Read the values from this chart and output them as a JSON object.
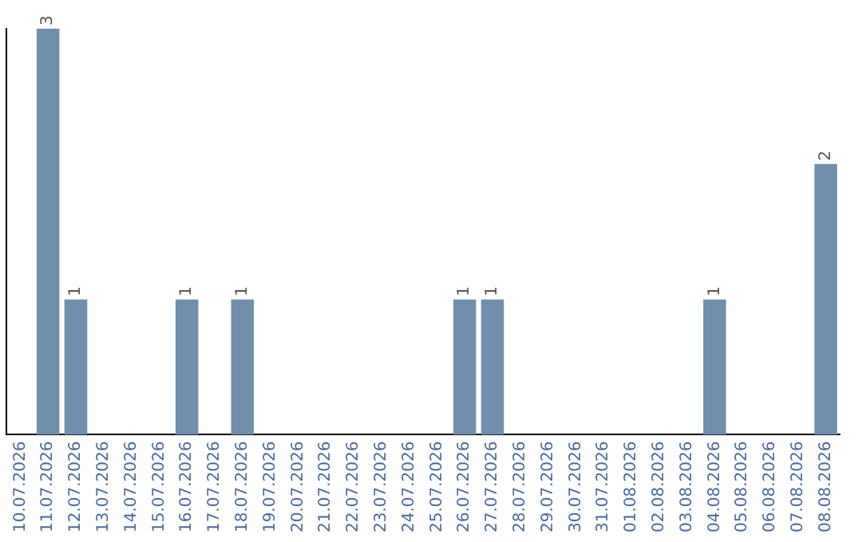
{
  "chart_data": {
    "type": "bar",
    "categories": [
      "10.07.2026",
      "11.07.2026",
      "12.07.2026",
      "13.07.2026",
      "14.07.2026",
      "15.07.2026",
      "16.07.2026",
      "17.07.2026",
      "18.07.2026",
      "19.07.2026",
      "20.07.2026",
      "21.07.2026",
      "22.07.2026",
      "23.07.2026",
      "24.07.2026",
      "25.07.2026",
      "26.07.2026",
      "27.07.2026",
      "28.07.2026",
      "29.07.2026",
      "30.07.2026",
      "31.07.2026",
      "01.08.2026",
      "02.08.2026",
      "03.08.2026",
      "04.08.2026",
      "05.08.2026",
      "06.08.2026",
      "07.08.2026",
      "08.08.2026"
    ],
    "values": [
      0,
      3,
      1,
      0,
      0,
      0,
      1,
      0,
      1,
      0,
      0,
      0,
      0,
      0,
      0,
      0,
      1,
      1,
      0,
      0,
      0,
      0,
      0,
      0,
      0,
      1,
      0,
      0,
      0,
      2
    ],
    "value_labels": [
      null,
      "3",
      "1",
      null,
      null,
      null,
      "1",
      null,
      "1",
      null,
      null,
      null,
      null,
      null,
      null,
      null,
      "1",
      "1",
      null,
      null,
      null,
      null,
      null,
      null,
      null,
      "1",
      null,
      null,
      null,
      "2"
    ],
    "color": "#6f8fad",
    "ylim": [
      0,
      3
    ],
    "tick_labels": "x",
    "grid": false
  }
}
